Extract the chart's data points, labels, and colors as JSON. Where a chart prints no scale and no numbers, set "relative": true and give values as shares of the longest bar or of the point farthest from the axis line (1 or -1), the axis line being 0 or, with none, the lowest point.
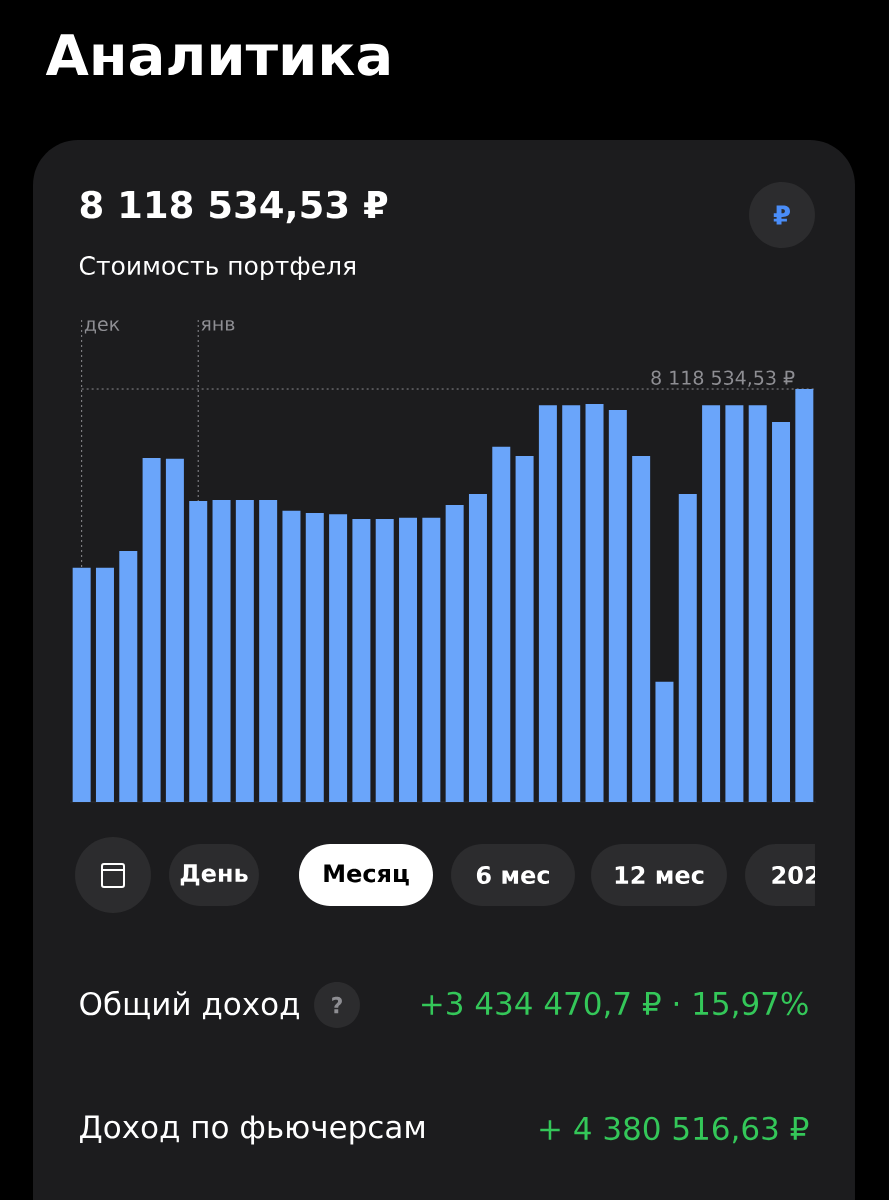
{
  "chart_data": {
    "type": "bar",
    "title": "8 118 534,53 ₽",
    "subtitle": "Стоимость портфеля",
    "categories": [
      null,
      null,
      null,
      null,
      null,
      null,
      null,
      null,
      null,
      null,
      null,
      null,
      null,
      null,
      null,
      null,
      null,
      null,
      null,
      null,
      null,
      null,
      null,
      null,
      null,
      null,
      null,
      null,
      null,
      null,
      null,
      null
    ],
    "values": [
      0.567,
      0.567,
      0.608,
      0.833,
      0.831,
      0.729,
      0.731,
      0.731,
      0.731,
      0.705,
      0.7,
      0.697,
      0.685,
      0.685,
      0.688,
      0.688,
      0.719,
      0.746,
      0.86,
      0.838,
      0.961,
      0.961,
      0.964,
      0.949,
      0.838,
      0.291,
      0.746,
      0.961,
      0.961,
      0.961,
      0.92,
      1
    ],
    "color": "#6aa5fa",
    "relative": true,
    "annotations": [
      "дек",
      "янв",
      "8 118 534,53 ₽",
      "Аналитика",
      "₽",
      "День",
      "Месяц",
      "6 мес",
      "12 мес",
      "202",
      "Общий доход",
      "?",
      "+3 434 470,7 ₽ · 15,97%",
      "Доход по фьючерсам",
      "+ 4 380 516,63 ₽"
    ]
  }
}
